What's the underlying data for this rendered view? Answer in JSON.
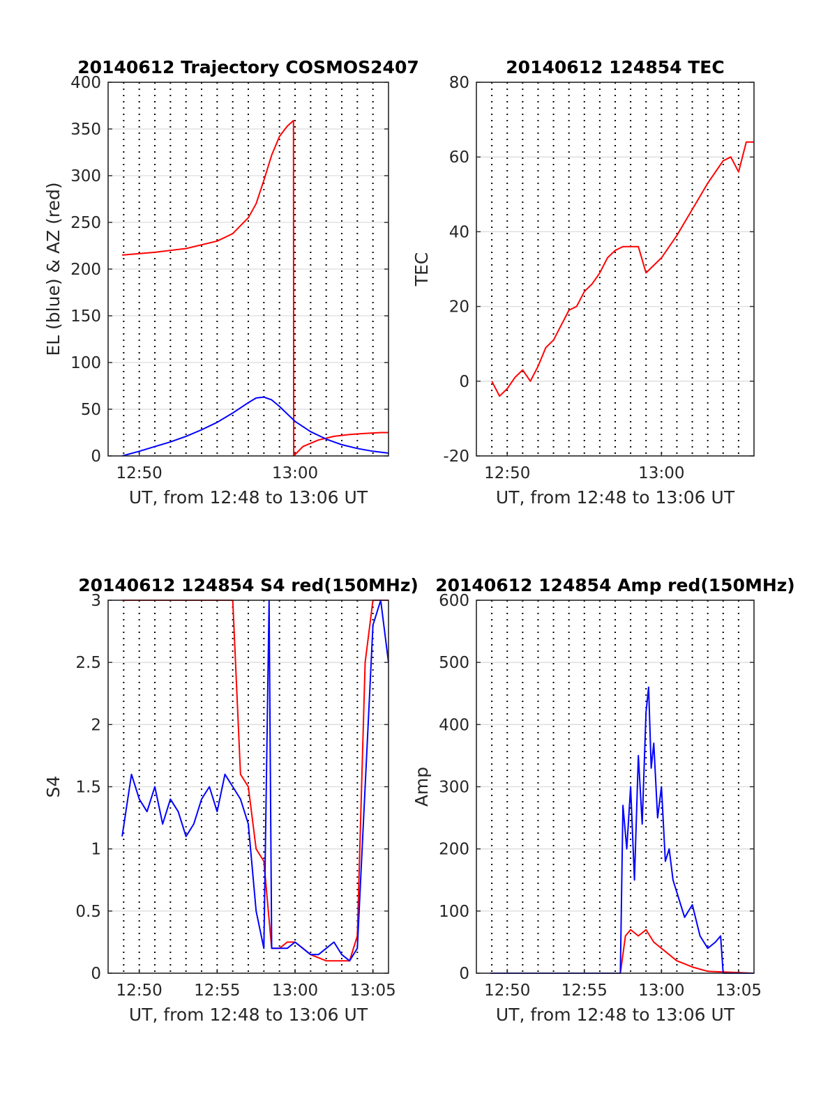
{
  "chart_data": [
    {
      "type": "line",
      "title": "20140612 Trajectory COSMOS2407",
      "xlabel": "UT, from 12:48 to 13:06 UT",
      "ylabel": "EL (blue) & AZ (red)",
      "x_unit": "minutes",
      "xlim": [
        "12:48",
        "13:06"
      ],
      "ylim": [
        0,
        400
      ],
      "xticks": [
        {
          "label": "12:50",
          "value": "12:50"
        },
        {
          "label": "13:00",
          "value": "13:00"
        }
      ],
      "yticks": [
        "0",
        "50",
        "100",
        "150",
        "200",
        "250",
        "300",
        "350",
        "400"
      ],
      "grid": true,
      "series": [
        {
          "color": "#ff0000",
          "x": [
            "12:48:54",
            "12:51:00",
            "12:53:00",
            "12:55:00",
            "12:56:00",
            "12:57:00",
            "12:57:30",
            "12:58:00",
            "12:58:30",
            "12:59:00",
            "12:59:30",
            "12:59:54",
            "12:59:55",
            "13:00:30",
            "13:01:30",
            "13:02:30",
            "13:03:30",
            "13:04:30",
            "13:05:30",
            "13:06:00"
          ],
          "y": [
            215,
            218,
            222,
            230,
            238,
            255,
            270,
            295,
            322,
            342,
            353,
            359,
            0,
            10,
            17,
            21,
            23,
            24,
            25,
            25
          ]
        },
        {
          "color": "#0000ff",
          "x": [
            "12:48:54",
            "12:50:00",
            "12:51:00",
            "12:52:00",
            "12:53:00",
            "12:54:00",
            "12:55:00",
            "12:56:00",
            "12:57:00",
            "12:57:30",
            "12:58:00",
            "12:58:30",
            "12:59:00",
            "12:59:30",
            "13:00:00",
            "13:01:00",
            "13:02:00",
            "13:03:00",
            "13:04:00",
            "13:05:00",
            "13:06:00"
          ],
          "y": [
            0,
            5,
            10,
            15,
            21,
            28,
            36,
            46,
            57,
            62,
            63,
            60,
            53,
            45,
            37,
            26,
            18,
            12,
            8,
            5,
            3
          ]
        }
      ]
    },
    {
      "type": "line",
      "title": "20140612 124854 TEC",
      "xlabel": "UT, from 12:48 to 13:06 UT",
      "ylabel": "TEC",
      "x_unit": "minutes",
      "xlim": [
        "12:48",
        "13:06"
      ],
      "ylim": [
        -20,
        80
      ],
      "xticks": [
        {
          "label": "12:50",
          "value": "12:50"
        },
        {
          "label": "13:00",
          "value": "13:00"
        }
      ],
      "yticks": [
        "-20",
        "0",
        "20",
        "40",
        "60",
        "80"
      ],
      "grid": true,
      "series": [
        {
          "color": "#ff0000",
          "x": [
            "12:49:00",
            "12:49:30",
            "12:50:00",
            "12:50:30",
            "12:51:00",
            "12:51:30",
            "12:52:00",
            "12:52:30",
            "12:53:00",
            "12:53:30",
            "12:54:00",
            "12:54:30",
            "12:55:00",
            "12:55:30",
            "12:56:00",
            "12:56:30",
            "12:57:00",
            "12:57:30",
            "12:58:00",
            "12:58:30",
            "12:59:00",
            "12:59:30",
            "13:00:00",
            "13:01:00",
            "13:02:00",
            "13:03:00",
            "13:04:00",
            "13:04:30",
            "13:05:00",
            "13:05:30",
            "13:06:00"
          ],
          "y": [
            0,
            -4,
            -2,
            1,
            3,
            0,
            4,
            9,
            11,
            15,
            19,
            20,
            24,
            26,
            29,
            33,
            35,
            36,
            36,
            36,
            29,
            31,
            33,
            39,
            46,
            53,
            59,
            60,
            56,
            64,
            64
          ]
        }
      ]
    },
    {
      "type": "line",
      "title": "20140612 124854 S4 red(150MHz)",
      "xlabel": "UT, from 12:48 to 13:06 UT",
      "ylabel": "S4",
      "x_unit": "minutes",
      "xlim": [
        "12:48",
        "13:06"
      ],
      "ylim": [
        0,
        3
      ],
      "xticks": [
        {
          "label": "12:50",
          "value": "12:50"
        },
        {
          "label": "12:55",
          "value": "12:55"
        },
        {
          "label": "13:00",
          "value": "13:00"
        },
        {
          "label": "13:05",
          "value": "13:05"
        }
      ],
      "yticks": [
        "0",
        "0.5",
        "1",
        "1.5",
        "2",
        "2.5",
        "3"
      ],
      "grid": true,
      "series": [
        {
          "color": "#ff0000",
          "x": [
            "12:48:54",
            "12:50:00",
            "12:51:00",
            "12:52:00",
            "12:53:00",
            "12:54:00",
            "12:55:00",
            "12:56:00",
            "12:56:30",
            "12:57:00",
            "12:57:30",
            "12:58:00",
            "12:58:30",
            "12:59:00",
            "12:59:30",
            "13:00:00",
            "13:01:00",
            "13:02:00",
            "13:03:00",
            "13:03:30",
            "13:04:00",
            "13:04:30",
            "13:05:00",
            "13:05:30",
            "13:06:00"
          ],
          "y": [
            3,
            3,
            3,
            3,
            3,
            3,
            3,
            3,
            1.6,
            1.5,
            1.0,
            0.9,
            0.2,
            0.2,
            0.25,
            0.25,
            0.15,
            0.1,
            0.1,
            0.1,
            0.3,
            2.5,
            3,
            3,
            3
          ]
        },
        {
          "color": "#0000ff",
          "x": [
            "12:48:54",
            "12:49:30",
            "12:50:00",
            "12:50:30",
            "12:51:00",
            "12:51:30",
            "12:52:00",
            "12:52:30",
            "12:53:00",
            "12:53:30",
            "12:54:00",
            "12:54:30",
            "12:55:00",
            "12:55:30",
            "12:56:00",
            "12:56:30",
            "12:57:00",
            "12:57:30",
            "12:58:00",
            "12:58:20",
            "12:58:30",
            "12:59:00",
            "12:59:30",
            "13:00:00",
            "13:00:30",
            "13:01:00",
            "13:01:30",
            "13:02:00",
            "13:02:30",
            "13:03:00",
            "13:03:30",
            "13:04:00",
            "13:04:30",
            "13:05:00",
            "13:05:30",
            "13:06:00"
          ],
          "y": [
            1.1,
            1.6,
            1.4,
            1.3,
            1.5,
            1.2,
            1.4,
            1.3,
            1.1,
            1.2,
            1.4,
            1.5,
            1.3,
            1.6,
            1.5,
            1.4,
            1.2,
            0.5,
            0.2,
            3.0,
            0.2,
            0.2,
            0.2,
            0.25,
            0.2,
            0.15,
            0.15,
            0.2,
            0.25,
            0.15,
            0.1,
            0.2,
            1.5,
            2.8,
            3.0,
            2.5
          ]
        }
      ]
    },
    {
      "type": "line",
      "title": "20140612 124854 Amp red(150MHz)",
      "xlabel": "UT, from 12:48 to 13:06 UT",
      "ylabel": "Amp",
      "x_unit": "minutes",
      "xlim": [
        "12:48",
        "13:06"
      ],
      "ylim": [
        0,
        600
      ],
      "xticks": [
        {
          "label": "12:50",
          "value": "12:50"
        },
        {
          "label": "12:55",
          "value": "12:55"
        },
        {
          "label": "13:00",
          "value": "13:00"
        },
        {
          "label": "13:05",
          "value": "13:05"
        }
      ],
      "yticks": [
        "0",
        "100",
        "200",
        "300",
        "400",
        "500",
        "600"
      ],
      "grid": true,
      "series": [
        {
          "color": "#ff0000",
          "x": [
            "12:48:54",
            "12:55:00",
            "12:57:20",
            "12:57:40",
            "12:58:00",
            "12:58:30",
            "12:59:00",
            "12:59:30",
            "13:00:00",
            "13:00:30",
            "13:01:00",
            "13:01:30",
            "13:02:00",
            "13:03:00",
            "13:06:00"
          ],
          "y": [
            0,
            0,
            0,
            60,
            70,
            60,
            70,
            50,
            40,
            30,
            20,
            15,
            10,
            3,
            0
          ]
        },
        {
          "color": "#0000ff",
          "x": [
            "12:48:54",
            "12:55:00",
            "12:57:20",
            "12:57:30",
            "12:57:45",
            "12:58:00",
            "12:58:15",
            "12:58:30",
            "12:58:45",
            "12:59:00",
            "12:59:10",
            "12:59:20",
            "12:59:30",
            "12:59:45",
            "13:00:00",
            "13:00:15",
            "13:00:30",
            "13:00:45",
            "13:01:00",
            "13:01:30",
            "13:02:00",
            "13:02:30",
            "13:03:00",
            "13:03:30",
            "13:03:50",
            "13:04:00",
            "13:06:00"
          ],
          "y": [
            0,
            0,
            0,
            270,
            200,
            300,
            150,
            350,
            240,
            420,
            460,
            330,
            370,
            250,
            300,
            180,
            200,
            150,
            130,
            90,
            110,
            60,
            40,
            50,
            60,
            0,
            0
          ]
        }
      ]
    }
  ]
}
